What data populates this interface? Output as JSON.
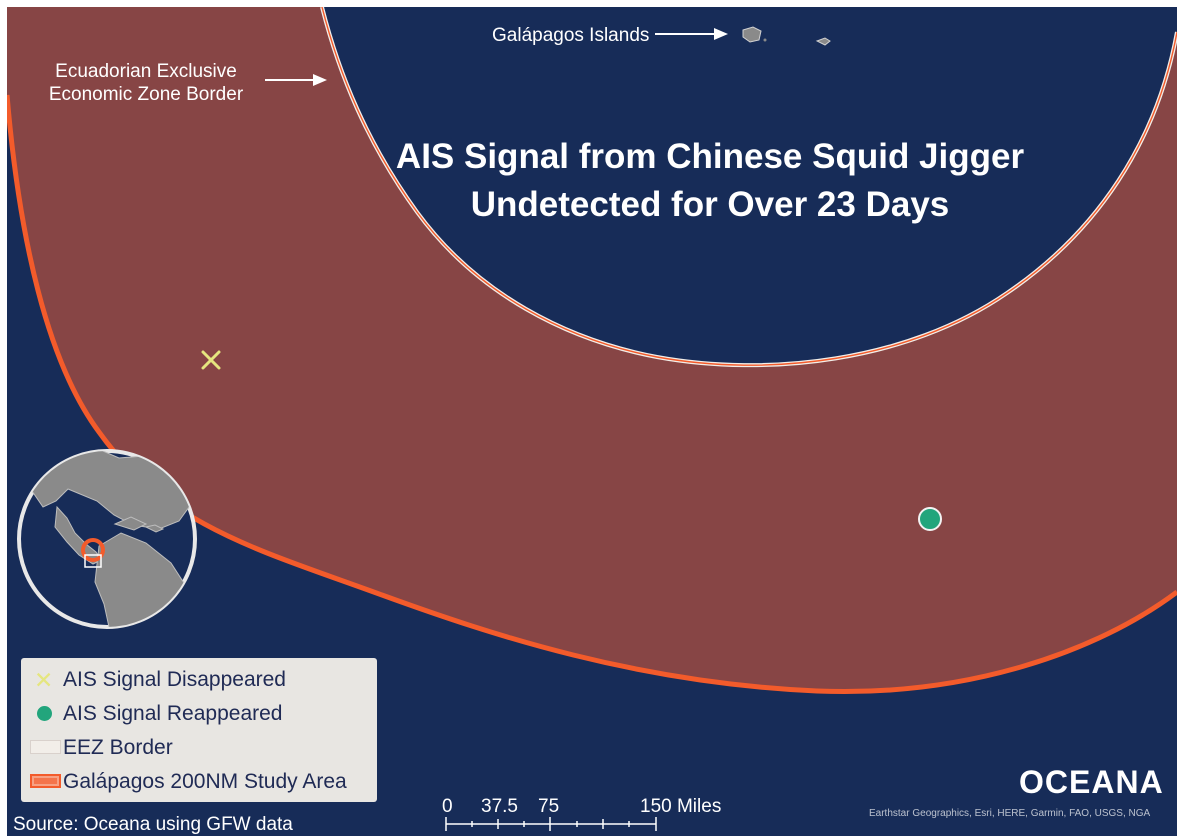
{
  "map": {
    "title_line_1": "AIS Signal from Chinese Squid Jigger",
    "title_line_2": "Undetected for Over 23 Days",
    "islands_label": "Galápagos Islands",
    "eez_label_line_1": "Ecuadorian Exclusive",
    "eez_label_line_2": "Economic Zone Border",
    "markers": [
      {
        "name": "AIS Signal Disappeared",
        "symbol": "x-icon",
        "color": "#e5e67f"
      },
      {
        "name": "AIS Signal Reappeared",
        "symbol": "circle-icon",
        "color": "#22a57c"
      }
    ],
    "colors": {
      "ocean": "#172c58",
      "study_area_fill": "#874545",
      "study_area_border": "#f35b2b",
      "eez_border": "#f2eee9",
      "land": "#8a8a8a"
    }
  },
  "legend": {
    "items": [
      {
        "label": "AIS Signal Disappeared",
        "icon": "x-icon"
      },
      {
        "label": "AIS Signal Reappeared",
        "icon": "circle-icon"
      },
      {
        "label": "EEZ Border",
        "icon": "rectangle-icon"
      },
      {
        "label": "Galápagos 200NM Study Area",
        "icon": "rounded-rectangle-icon"
      }
    ]
  },
  "scale": {
    "labels": [
      "0",
      "37.5",
      "75",
      "150 Miles"
    ]
  },
  "footer": {
    "source": "Source: Oceana using GFW data",
    "brand": "OCEANA",
    "credits": "Earthstar Geographics, Esri, HERE, Garmin, FAO, USGS, NGA"
  }
}
